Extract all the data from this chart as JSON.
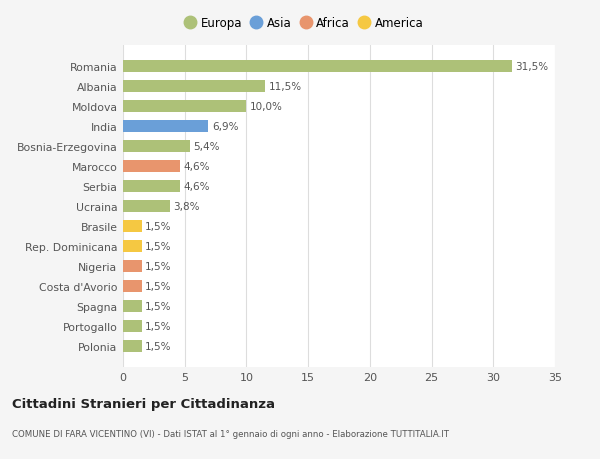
{
  "categories": [
    "Polonia",
    "Portogallo",
    "Spagna",
    "Costa d'Avorio",
    "Nigeria",
    "Rep. Dominicana",
    "Brasile",
    "Ucraina",
    "Serbia",
    "Marocco",
    "Bosnia-Erzegovina",
    "India",
    "Moldova",
    "Albania",
    "Romania"
  ],
  "values": [
    1.5,
    1.5,
    1.5,
    1.5,
    1.5,
    1.5,
    1.5,
    3.8,
    4.6,
    4.6,
    5.4,
    6.9,
    10.0,
    11.5,
    31.5
  ],
  "colors": [
    "#adc178",
    "#adc178",
    "#adc178",
    "#e8956d",
    "#e8956d",
    "#f5c842",
    "#f5c842",
    "#adc178",
    "#adc178",
    "#e8956d",
    "#adc178",
    "#6a9fd8",
    "#adc178",
    "#adc178",
    "#adc178"
  ],
  "labels": [
    "1,5%",
    "1,5%",
    "1,5%",
    "1,5%",
    "1,5%",
    "1,5%",
    "1,5%",
    "3,8%",
    "4,6%",
    "4,6%",
    "5,4%",
    "6,9%",
    "10,0%",
    "11,5%",
    "31,5%"
  ],
  "legend": [
    {
      "label": "Europa",
      "color": "#adc178"
    },
    {
      "label": "Asia",
      "color": "#6a9fd8"
    },
    {
      "label": "Africa",
      "color": "#e8956d"
    },
    {
      "label": "America",
      "color": "#f5c842"
    }
  ],
  "title": "Cittadini Stranieri per Cittadinanza",
  "subtitle": "COMUNE DI FARA VICENTINO (VI) - Dati ISTAT al 1° gennaio di ogni anno - Elaborazione TUTTITALIA.IT",
  "xlim": [
    0,
    35
  ],
  "xticks": [
    0,
    5,
    10,
    15,
    20,
    25,
    30,
    35
  ],
  "background_color": "#f5f5f5",
  "bar_facecolor": "#ffffff",
  "grid_color": "#dddddd"
}
